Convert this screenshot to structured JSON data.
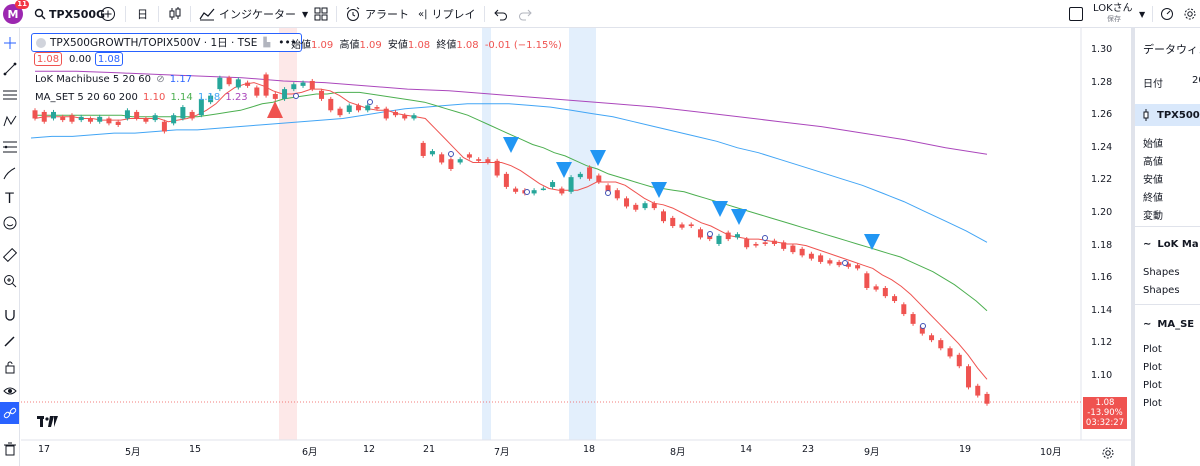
{
  "topbar": {
    "avatar_letter": "M",
    "avatar_badge": "11",
    "symbol": "TPX500G",
    "interval": "日",
    "indicators_label": "インジケーター",
    "alert_label": "アラート",
    "replay_label": "リプレイ",
    "layout_name": "LOKさん",
    "save_status": "保存"
  },
  "legend": {
    "title": "TPX500GROWTH/TOPIX500V · 1日 · TSE",
    "open_label": "始値",
    "open_value": "1.09",
    "high_label": "高値",
    "high_value": "1.09",
    "low_label": "安値",
    "low_value": "1.08",
    "close_label": "終値",
    "close_value": "1.08",
    "change": "-0.01 (−1.15%)",
    "price_box_1": "1.08",
    "price_box_2": "0.00",
    "price_box_3": "1.08",
    "indicator1_name": "LoK Machibuse 5 20 60",
    "indicator1_value": "1.17",
    "indicator2_name": "MA_SET 5 20 60 200",
    "indicator2_v1": "1.10",
    "indicator2_v2": "1.14",
    "indicator2_v3": "1.18",
    "indicator2_v4": "1.23"
  },
  "price_axis": {
    "ticks": [
      "1.30",
      "1.28",
      "1.26",
      "1.24",
      "1.22",
      "1.20",
      "1.18",
      "1.16",
      "1.14",
      "1.12",
      "1.10"
    ],
    "current_price": "1.08",
    "current_change": "-13.90%",
    "countdown": "03:32:27"
  },
  "time_axis": {
    "ticks": [
      "17",
      "5月",
      "15",
      "6月",
      "12",
      "21",
      "7月",
      "18",
      "8月",
      "14",
      "23",
      "9月",
      "19",
      "10月"
    ]
  },
  "right_panel": {
    "title": "データウィン",
    "date_label": "日付",
    "date_value": "20",
    "symbol_short": "TPX500",
    "ohlc_labels": [
      "始値",
      "高値",
      "安値",
      "終値",
      "変動"
    ],
    "indicator1_short": "LoK Ma",
    "shapes_labels": [
      "Shapes",
      "Shapes"
    ],
    "indicator2_short": "MA_SE",
    "plot_labels": [
      "Plot",
      "Plot",
      "Plot",
      "Plot"
    ]
  },
  "colors": {
    "up": "#26a69a",
    "down": "#ef5350",
    "ma5": "#ef5350",
    "ma20": "#4caf50",
    "ma60": "#42a5f5",
    "ma200": "#ab47bc",
    "signal_down": "#2196f3",
    "signal_up": "#ef5350",
    "accent": "#2962ff"
  },
  "chart_data": {
    "type": "candlestick",
    "ylim": [
      1.07,
      1.31
    ],
    "candles": [
      {
        "o": 1.263,
        "c": 1.258
      },
      {
        "o": 1.262,
        "c": 1.256
      },
      {
        "o": 1.258,
        "c": 1.262
      },
      {
        "o": 1.259,
        "c": 1.257
      },
      {
        "o": 1.26,
        "c": 1.256
      },
      {
        "o": 1.257,
        "c": 1.259
      },
      {
        "o": 1.258,
        "c": 1.256
      },
      {
        "o": 1.256,
        "c": 1.259
      },
      {
        "o": 1.258,
        "c": 1.255
      },
      {
        "o": 1.256,
        "c": 1.254
      },
      {
        "o": 1.258,
        "c": 1.263
      },
      {
        "o": 1.262,
        "c": 1.258
      },
      {
        "o": 1.258,
        "c": 1.256
      },
      {
        "o": 1.257,
        "c": 1.26
      },
      {
        "o": 1.256,
        "c": 1.25
      },
      {
        "o": 1.255,
        "c": 1.26
      },
      {
        "o": 1.258,
        "c": 1.265
      },
      {
        "o": 1.262,
        "c": 1.258
      },
      {
        "o": 1.26,
        "c": 1.27
      },
      {
        "o": 1.268,
        "c": 1.272
      },
      {
        "o": 1.276,
        "c": 1.283
      },
      {
        "o": 1.283,
        "c": 1.279
      },
      {
        "o": 1.277,
        "c": 1.282
      },
      {
        "o": 1.28,
        "c": 1.278
      },
      {
        "o": 1.277,
        "c": 1.272
      },
      {
        "o": 1.285,
        "c": 1.272
      },
      {
        "o": 1.273,
        "c": 1.27
      },
      {
        "o": 1.27,
        "c": 1.276
      },
      {
        "o": 1.276,
        "c": 1.279
      },
      {
        "o": 1.278,
        "c": 1.28
      },
      {
        "o": 1.281,
        "c": 1.276
      },
      {
        "o": 1.275,
        "c": 1.27
      },
      {
        "o": 1.27,
        "c": 1.263
      },
      {
        "o": 1.264,
        "c": 1.26
      },
      {
        "o": 1.262,
        "c": 1.266
      },
      {
        "o": 1.266,
        "c": 1.263
      },
      {
        "o": 1.263,
        "c": 1.266
      },
      {
        "o": 1.265,
        "c": 1.264
      },
      {
        "o": 1.264,
        "c": 1.258
      },
      {
        "o": 1.262,
        "c": 1.26
      },
      {
        "o": 1.26,
        "c": 1.258
      },
      {
        "o": 1.258,
        "c": 1.26
      },
      {
        "o": 1.243,
        "c": 1.235
      },
      {
        "o": 1.236,
        "c": 1.238
      },
      {
        "o": 1.236,
        "c": 1.231
      },
      {
        "o": 1.233,
        "c": 1.227
      },
      {
        "o": 1.231,
        "c": 1.233
      },
      {
        "o": 1.236,
        "c": 1.234
      },
      {
        "o": 1.233,
        "c": 1.232
      },
      {
        "o": 1.233,
        "c": 1.231
      },
      {
        "o": 1.232,
        "c": 1.223
      },
      {
        "o": 1.224,
        "c": 1.216
      },
      {
        "o": 1.215,
        "c": 1.213
      },
      {
        "o": 1.214,
        "c": 1.212
      },
      {
        "o": 1.212,
        "c": 1.214
      },
      {
        "o": 1.215,
        "c": 1.215
      },
      {
        "o": 1.216,
        "c": 1.219
      },
      {
        "o": 1.215,
        "c": 1.212
      },
      {
        "o": 1.213,
        "c": 1.222
      },
      {
        "o": 1.222,
        "c": 1.224
      },
      {
        "o": 1.228,
        "c": 1.221
      },
      {
        "o": 1.223,
        "c": 1.219
      },
      {
        "o": 1.217,
        "c": 1.212
      },
      {
        "o": 1.214,
        "c": 1.209
      },
      {
        "o": 1.209,
        "c": 1.204
      },
      {
        "o": 1.205,
        "c": 1.202
      },
      {
        "o": 1.203,
        "c": 1.206
      },
      {
        "o": 1.206,
        "c": 1.203
      },
      {
        "o": 1.201,
        "c": 1.195
      },
      {
        "o": 1.197,
        "c": 1.192
      },
      {
        "o": 1.193,
        "c": 1.191
      },
      {
        "o": 1.193,
        "c": 1.192
      },
      {
        "o": 1.19,
        "c": 1.185
      },
      {
        "o": 1.187,
        "c": 1.184
      },
      {
        "o": 1.181,
        "c": 1.186
      },
      {
        "o": 1.188,
        "c": 1.184
      },
      {
        "o": 1.185,
        "c": 1.187
      },
      {
        "o": 1.184,
        "c": 1.179
      },
      {
        "o": 1.181,
        "c": 1.18
      },
      {
        "o": 1.182,
        "c": 1.181
      },
      {
        "o": 1.183,
        "c": 1.181
      },
      {
        "o": 1.182,
        "c": 1.178
      },
      {
        "o": 1.18,
        "c": 1.176
      },
      {
        "o": 1.178,
        "c": 1.174
      },
      {
        "o": 1.175,
        "c": 1.172
      },
      {
        "o": 1.174,
        "c": 1.17
      },
      {
        "o": 1.171,
        "c": 1.169
      },
      {
        "o": 1.17,
        "c": 1.168
      },
      {
        "o": 1.169,
        "c": 1.167
      },
      {
        "o": 1.168,
        "c": 1.166
      },
      {
        "o": 1.163,
        "c": 1.154
      },
      {
        "o": 1.155,
        "c": 1.153
      },
      {
        "o": 1.154,
        "c": 1.149
      },
      {
        "o": 1.149,
        "c": 1.146
      },
      {
        "o": 1.144,
        "c": 1.138
      },
      {
        "o": 1.138,
        "c": 1.132
      },
      {
        "o": 1.131,
        "c": 1.126
      },
      {
        "o": 1.125,
        "c": 1.122
      },
      {
        "o": 1.122,
        "c": 1.117
      },
      {
        "o": 1.117,
        "c": 1.112
      },
      {
        "o": 1.113,
        "c": 1.106
      },
      {
        "o": 1.106,
        "c": 1.093
      },
      {
        "o": 1.094,
        "c": 1.088
      },
      {
        "o": 1.089,
        "c": 1.083
      }
    ],
    "ma5": [
      1.258,
      1.259,
      1.259,
      1.259,
      1.259,
      1.258,
      1.258,
      1.257,
      1.257,
      1.257,
      1.258,
      1.258,
      1.258,
      1.258,
      1.256,
      1.257,
      1.258,
      1.26,
      1.263,
      1.267,
      1.273,
      1.277,
      1.279,
      1.28,
      1.278,
      1.275,
      1.273,
      1.273,
      1.274,
      1.276,
      1.276,
      1.275,
      1.272,
      1.268,
      1.266,
      1.264,
      1.263,
      1.263,
      1.261,
      1.26,
      1.259,
      1.258,
      1.252,
      1.246,
      1.24,
      1.234,
      1.231,
      1.231,
      1.231,
      1.231,
      1.229,
      1.226,
      1.222,
      1.218,
      1.215,
      1.214,
      1.214,
      1.214,
      1.216,
      1.219,
      1.219,
      1.219,
      1.217,
      1.213,
      1.209,
      1.206,
      1.205,
      1.203,
      1.2,
      1.197,
      1.194,
      1.192,
      1.189,
      1.186,
      1.185,
      1.184,
      1.184,
      1.183,
      1.182,
      1.181,
      1.181,
      1.18,
      1.178,
      1.176,
      1.174,
      1.172,
      1.17,
      1.168,
      1.166,
      1.162,
      1.159,
      1.155,
      1.15,
      1.144,
      1.138,
      1.132,
      1.126,
      1.12,
      1.113,
      1.105,
      1.098
    ],
    "ma20": [
      1.26,
      1.26,
      1.26,
      1.26,
      1.26,
      1.26,
      1.26,
      1.26,
      1.26,
      1.259,
      1.259,
      1.259,
      1.259,
      1.259,
      1.259,
      1.259,
      1.26,
      1.261,
      1.262,
      1.263,
      1.265,
      1.267,
      1.268,
      1.27,
      1.271,
      1.272,
      1.273,
      1.273,
      1.274,
      1.274,
      1.274,
      1.273,
      1.272,
      1.271,
      1.27,
      1.269,
      1.268,
      1.266,
      1.264,
      1.262,
      1.26,
      1.257,
      1.254,
      1.251,
      1.248,
      1.245,
      1.242,
      1.24,
      1.237,
      1.235,
      1.232,
      1.229,
      1.227,
      1.224,
      1.222,
      1.22,
      1.218,
      1.216,
      1.215,
      1.214,
      1.213,
      1.211,
      1.209,
      1.207,
      1.205,
      1.203,
      1.201,
      1.199,
      1.197,
      1.195,
      1.193,
      1.191,
      1.189,
      1.187,
      1.185,
      1.183,
      1.181,
      1.179,
      1.177,
      1.175,
      1.173,
      1.17,
      1.167,
      1.164,
      1.16,
      1.156,
      1.151,
      1.146,
      1.14
    ],
    "ma60": [
      1.246,
      1.247,
      1.247,
      1.248,
      1.249,
      1.249,
      1.25,
      1.251,
      1.251,
      1.252,
      1.253,
      1.254,
      1.255,
      1.256,
      1.257,
      1.258,
      1.26,
      1.262,
      1.264,
      1.265,
      1.266,
      1.267,
      1.267,
      1.267,
      1.266,
      1.265,
      1.263,
      1.261,
      1.259,
      1.256,
      1.253,
      1.25,
      1.247,
      1.244,
      1.24,
      1.237,
      1.233,
      1.229,
      1.225,
      1.221,
      1.217,
      1.212,
      1.207,
      1.201,
      1.195,
      1.189,
      1.182
    ],
    "ma200": [
      1.287,
      1.287,
      1.286,
      1.285,
      1.284,
      1.283,
      1.281,
      1.28,
      1.278,
      1.276,
      1.275,
      1.273,
      1.271,
      1.269,
      1.267,
      1.265,
      1.262,
      1.259,
      1.256,
      1.253,
      1.249,
      1.245,
      1.24,
      1.236
    ]
  }
}
